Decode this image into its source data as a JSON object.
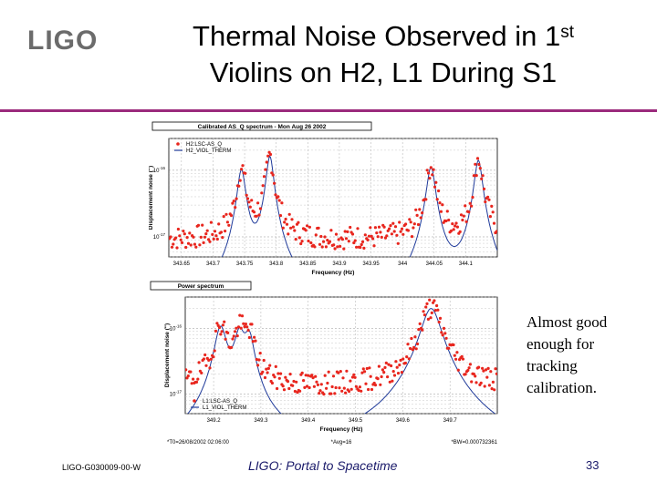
{
  "slide": {
    "logo": "LIGO",
    "title_line1": "Thermal Noise Observed in 1",
    "title_sup": "st",
    "title_line2": "Violins on H2, L1 During S1",
    "side_note": "Almost good enough for tracking calibration.",
    "footer_id": "LIGO-G030009-00-W",
    "footer_center": "LIGO: Portal to Spacetime",
    "page_number": "33"
  },
  "chart_data": [
    {
      "type": "line",
      "panel_title": "Calibrated AS_Q spectrum - Mon Aug 26 2002",
      "xlabel": "Frequency (Hz)",
      "ylabel": "Displacement noise (\")",
      "x_ticks": [
        "343.65",
        "343.7",
        "343.75",
        "343.8",
        "343.85",
        "343.9",
        "343.95",
        "344",
        "344.05",
        "344.1"
      ],
      "xlim": [
        343.63,
        344.15
      ],
      "y_scale": "log",
      "y_ticks": [
        {
          "label": "10",
          "exp": "-16",
          "value": 1e-16
        },
        {
          "label": "10",
          "exp": "-17",
          "value": 1e-17
        }
      ],
      "ylim": [
        5e-18,
        3e-16
      ],
      "legend_placement": "top-left",
      "series": [
        {
          "name": "H2:LSC-AS_Q",
          "color": "#e8261e",
          "style": "markers"
        },
        {
          "name": "H2_VIOL_THERM",
          "color": "#1f3a9a",
          "style": "line"
        }
      ],
      "peaks": [
        {
          "f0": 343.745,
          "amp": 1e-16,
          "width": 0.006
        },
        {
          "f0": 343.79,
          "amp": 1.6e-16,
          "width": 0.0055
        },
        {
          "f0": 344.045,
          "amp": 1.1e-16,
          "width": 0.0065
        },
        {
          "f0": 344.12,
          "amp": 1.4e-16,
          "width": 0.006
        }
      ],
      "floor_data": 9e-18,
      "floor_model": 4e-19
    },
    {
      "type": "line",
      "panel_title": "Power spectrum",
      "xlabel": "Frequency (Hz)",
      "ylabel": "Displacement noise (\")",
      "x_ticks": [
        "349.2",
        "349.3",
        "349.4",
        "349.5",
        "349.6",
        "349.7"
      ],
      "xlim": [
        349.14,
        349.8
      ],
      "y_scale": "log",
      "y_ticks": [
        {
          "label": "10",
          "exp": "-16",
          "value": 1e-16
        },
        {
          "label": "10",
          "exp": "-17",
          "value": 1e-17
        }
      ],
      "ylim": [
        5e-18,
        3e-16
      ],
      "legend_placement": "bottom-left",
      "series": [
        {
          "name": "L1:LSC-AS_Q",
          "color": "#e8261e",
          "style": "markers"
        },
        {
          "name": "L1_VIOL_THERM",
          "color": "#1f3a9a",
          "style": "line"
        }
      ],
      "peaks": [
        {
          "f0": 349.215,
          "amp": 1e-16,
          "width": 0.012
        },
        {
          "f0": 349.255,
          "amp": 8e-17,
          "width": 0.011
        },
        {
          "f0": 349.275,
          "amp": 7e-17,
          "width": 0.01
        },
        {
          "f0": 349.66,
          "amp": 2e-16,
          "width": 0.02
        }
      ],
      "floor_data": 1.2e-17,
      "floor_model": 6e-19,
      "footnotes": [
        "*T0=26/08/2002 02:06:00",
        "*Avg=16",
        "*BW=0.000732361"
      ]
    }
  ]
}
